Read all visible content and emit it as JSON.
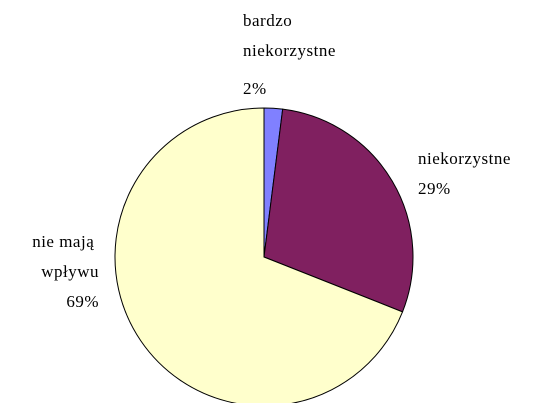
{
  "chart_data": {
    "type": "pie",
    "categories": [
      "bardzo niekorzystne",
      "niekorzystne",
      "nie mają wpływu"
    ],
    "values": [
      2,
      29,
      69
    ],
    "value_labels": [
      "2%",
      "29%",
      "69%"
    ],
    "colors": [
      "#8080ff",
      "#802060",
      "#ffffcc"
    ]
  }
}
